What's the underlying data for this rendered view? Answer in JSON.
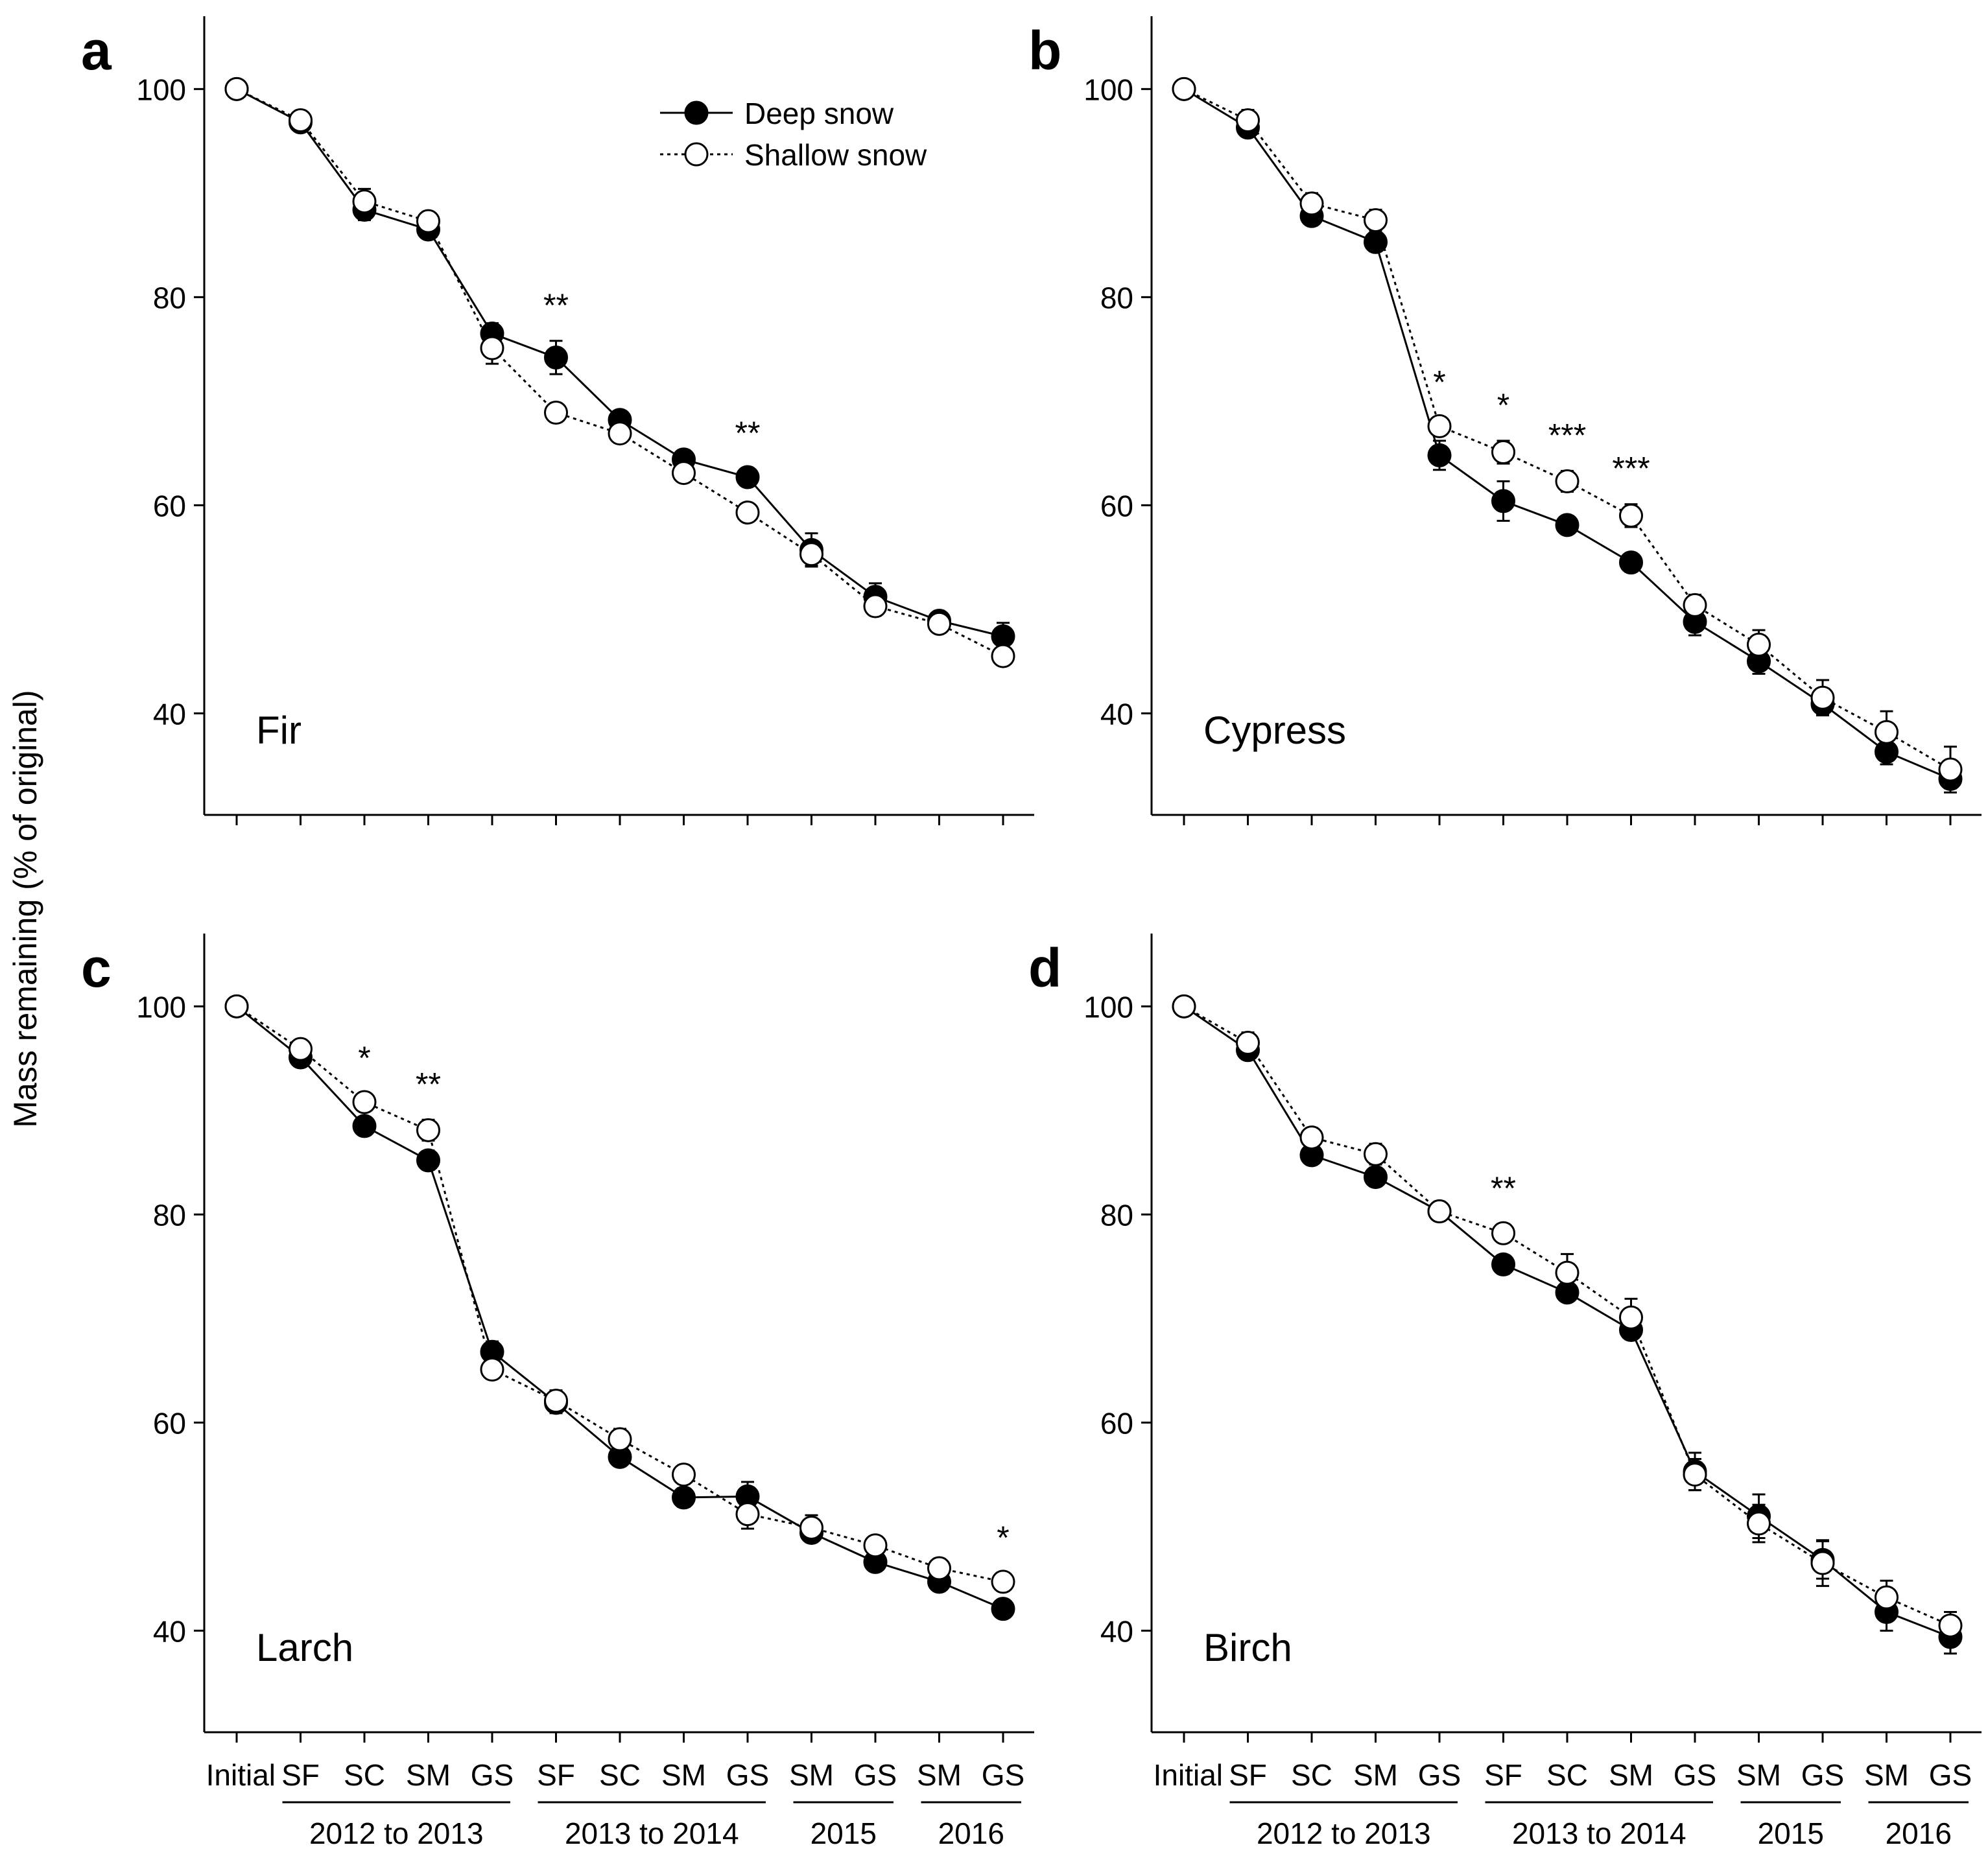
{
  "figure": {
    "y_axis_label": "Mass remaining (% of original)",
    "x_tick_labels": [
      "Initial",
      "SF",
      "SC",
      "SM",
      "GS",
      "SF",
      "SC",
      "SM",
      "GS",
      "SM",
      "GS",
      "SM",
      "GS"
    ],
    "year_groups": [
      {
        "label": "2012 to 2013",
        "from": 1,
        "to": 4
      },
      {
        "label": "2013 to 2014",
        "from": 5,
        "to": 8
      },
      {
        "label": "2015",
        "from": 9,
        "to": 10
      },
      {
        "label": "2016",
        "from": 11,
        "to": 12
      }
    ],
    "legend": {
      "deep": "Deep snow",
      "shallow": "Shallow snow"
    },
    "y_ticks": [
      40,
      60,
      80,
      100
    ],
    "colors": {
      "deep": "#000000",
      "shallow": "#ffffff",
      "axis": "#000000"
    }
  },
  "chart_data": [
    {
      "panel": "a",
      "species": "Fir",
      "type": "line",
      "ylim": [
        30,
        107
      ],
      "series": [
        {
          "name": "Deep snow",
          "values": [
            100,
            96.8,
            88.4,
            86.5,
            76.5,
            74.2,
            68.2,
            64.4,
            62.7,
            55.7,
            51.2,
            48.9,
            47.4
          ],
          "errors": [
            0,
            0.8,
            1.0,
            0.8,
            1.0,
            1.6,
            0.8,
            0.9,
            0.8,
            1.6,
            1.3,
            0.7,
            1.3
          ]
        },
        {
          "name": "Shallow snow",
          "values": [
            100,
            97.0,
            89.2,
            87.3,
            75.1,
            68.9,
            66.9,
            63.1,
            59.3,
            55.3,
            50.3,
            48.6,
            45.5
          ],
          "errors": [
            0,
            0.9,
            1.2,
            0.9,
            1.5,
            0.9,
            0.9,
            0.8,
            0.6,
            1.1,
            0.9,
            0.8,
            0.7
          ]
        }
      ],
      "annotations": [
        {
          "index": 5,
          "text": "**"
        },
        {
          "index": 8,
          "text": "**"
        }
      ]
    },
    {
      "panel": "b",
      "species": "Cypress",
      "type": "line",
      "ylim": [
        30,
        107
      ],
      "series": [
        {
          "name": "Deep snow",
          "values": [
            100,
            96.3,
            87.8,
            85.3,
            64.8,
            60.4,
            58.1,
            54.5,
            48.8,
            45.0,
            40.9,
            36.3,
            33.7
          ],
          "errors": [
            0,
            0.8,
            0.9,
            0.9,
            1.4,
            1.9,
            0.8,
            0.9,
            1.3,
            1.2,
            1.0,
            1.2,
            0.9
          ]
        },
        {
          "name": "Shallow snow",
          "values": [
            100,
            97.0,
            89.0,
            87.4,
            67.6,
            65.1,
            62.3,
            59.0,
            50.4,
            46.6,
            41.5,
            38.2,
            34.6
          ],
          "errors": [
            0,
            1.0,
            1.0,
            1.0,
            0.8,
            1.1,
            1.0,
            1.1,
            1.0,
            1.4,
            1.7,
            2.0,
            2.2
          ]
        }
      ],
      "annotations": [
        {
          "index": 4,
          "text": "*"
        },
        {
          "index": 5,
          "text": "*"
        },
        {
          "index": 6,
          "text": "***"
        },
        {
          "index": 7,
          "text": "***"
        }
      ]
    },
    {
      "panel": "c",
      "species": "Larch",
      "type": "line",
      "ylim": [
        30,
        107
      ],
      "series": [
        {
          "name": "Deep snow",
          "values": [
            100,
            95.1,
            88.5,
            85.2,
            66.8,
            61.9,
            56.7,
            52.8,
            52.9,
            49.4,
            46.6,
            44.7,
            42.1
          ],
          "errors": [
            0,
            0.7,
            0.8,
            0.9,
            1.0,
            1.0,
            0.9,
            0.9,
            1.4,
            0.9,
            0.8,
            0.8,
            0.7
          ]
        },
        {
          "name": "Shallow snow",
          "values": [
            100,
            95.9,
            90.8,
            88.1,
            65.1,
            62.1,
            58.4,
            55.0,
            51.2,
            49.9,
            48.2,
            46.0,
            44.7
          ],
          "errors": [
            0,
            0.8,
            0.8,
            1.0,
            0.8,
            1.0,
            1.0,
            0.9,
            1.4,
            1.2,
            0.8,
            0.9,
            0.8
          ]
        }
      ],
      "annotations": [
        {
          "index": 2,
          "text": "*"
        },
        {
          "index": 3,
          "text": "**"
        },
        {
          "index": 12,
          "text": "*"
        }
      ]
    },
    {
      "panel": "d",
      "species": "Birch",
      "type": "line",
      "ylim": [
        30,
        107
      ],
      "series": [
        {
          "name": "Deep snow",
          "values": [
            100,
            95.8,
            85.7,
            83.6,
            80.3,
            75.2,
            72.5,
            68.9,
            55.3,
            51.0,
            46.8,
            41.8,
            39.4
          ],
          "errors": [
            0,
            0.9,
            0.8,
            0.9,
            0.9,
            0.9,
            0.8,
            0.9,
            1.8,
            2.1,
            1.8,
            1.8,
            1.6
          ]
        },
        {
          "name": "Shallow snow",
          "values": [
            100,
            96.5,
            87.4,
            85.8,
            80.3,
            78.2,
            74.4,
            70.1,
            55.0,
            50.3,
            46.5,
            43.2,
            40.5
          ],
          "errors": [
            0,
            1.0,
            0.9,
            1.0,
            0.8,
            0.9,
            1.8,
            1.8,
            1.5,
            1.8,
            2.2,
            1.6,
            1.3
          ]
        }
      ],
      "annotations": [
        {
          "index": 5,
          "text": "**"
        }
      ]
    }
  ]
}
